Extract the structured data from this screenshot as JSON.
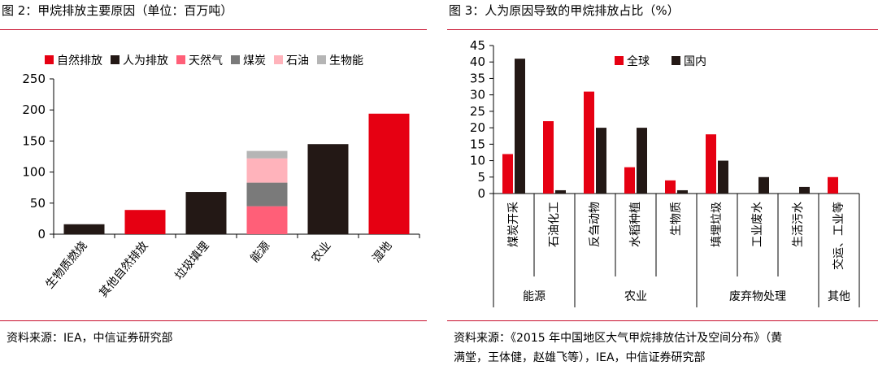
{
  "left": {
    "title": "图 2：甲烷排放主要原因（单位：百万吨）",
    "source": "资料来源：IEA，中信证券研究部",
    "chart_data": {
      "type": "bar",
      "stacked": true,
      "categories": [
        "生物质燃烧",
        "其他自然排放",
        "垃圾填埋",
        "能源",
        "农业",
        "湿地"
      ],
      "yticks": [
        "0",
        "50",
        "100",
        "150",
        "200",
        "250"
      ],
      "ylim": [
        0,
        250
      ],
      "legend_position": "top",
      "series": [
        {
          "name": "自然排放",
          "color": "#e60012",
          "values": [
            0,
            39,
            0,
            0,
            0,
            194
          ]
        },
        {
          "name": "人为排放",
          "color": "#231815",
          "values": [
            16,
            0,
            68,
            0,
            145,
            0
          ]
        },
        {
          "name": "天然气",
          "color": "#ff5f78",
          "values": [
            0,
            0,
            0,
            45,
            0,
            0
          ]
        },
        {
          "name": "煤炭",
          "color": "#7a7a7a",
          "values": [
            0,
            0,
            0,
            38,
            0,
            0
          ]
        },
        {
          "name": "石油",
          "color": "#ffb3bb",
          "values": [
            0,
            0,
            0,
            39,
            0,
            0
          ]
        },
        {
          "name": "生物能",
          "color": "#b5b5b5",
          "values": [
            0,
            0,
            0,
            12,
            0,
            0
          ]
        }
      ]
    }
  },
  "right": {
    "title": "图 3：人为原因导致的甲烷排放占比（%）",
    "source_line1": "资料来源：《2015 年中国地区大气甲烷排放估计及空间分布》（黄",
    "source_line2": "满堂，王体健，赵雄飞等），IEA，中信证券研究部",
    "chart_data": {
      "type": "bar",
      "categories": [
        "煤炭开采",
        "石油化工",
        "反刍动物",
        "水稻种植",
        "生物质",
        "填埋垃圾",
        "工业废水",
        "生活污水",
        "交运、工业等"
      ],
      "groups": [
        {
          "label": "能源",
          "count": 2
        },
        {
          "label": "农业",
          "count": 3
        },
        {
          "label": "废弃物处理",
          "count": 3
        },
        {
          "label": "其他",
          "count": 1
        }
      ],
      "yticks": [
        "0",
        "5",
        "10",
        "15",
        "20",
        "25",
        "30",
        "35",
        "40",
        "45"
      ],
      "ylim": [
        0,
        45
      ],
      "legend_position": "top",
      "series": [
        {
          "name": "全球",
          "color": "#e60012",
          "values": [
            12,
            22,
            31,
            8,
            4,
            18,
            0,
            0,
            5
          ]
        },
        {
          "name": "国内",
          "color": "#231815",
          "values": [
            41,
            1,
            20,
            20,
            1,
            10,
            5,
            2,
            0
          ]
        }
      ]
    }
  }
}
